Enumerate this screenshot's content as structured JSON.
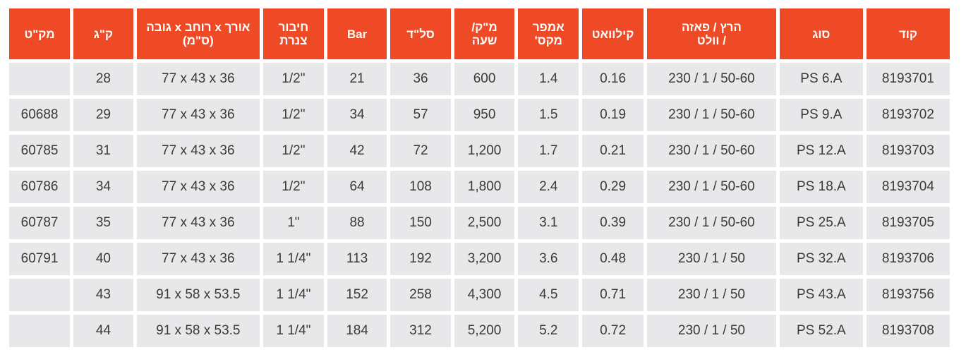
{
  "table": {
    "headers": [
      "קוד",
      "סוג",
      "הרץ / פאזה\n/ וולט",
      "קילוואט",
      "אמפר\nמקס'",
      "מ\"ק/\nשעה",
      "סל\"ד",
      "Bar",
      "חיבור\nצנרת",
      "אורך x רוחב x גובה\n(ס\"מ)",
      "ק\"ג",
      "מק\"ט"
    ],
    "rows": [
      [
        "8193701",
        "PS 6.A",
        "230 / 1 / 50-60",
        "0.16",
        "1.4",
        "600",
        "36",
        "21",
        "1/2\"",
        "77 x 43 x 36",
        "28",
        ""
      ],
      [
        "8193702",
        "PS 9.A",
        "230 / 1 / 50-60",
        "0.19",
        "1.5",
        "950",
        "57",
        "34",
        "1/2\"",
        "77 x 43 x 36",
        "29",
        "60688"
      ],
      [
        "8193703",
        "PS 12.A",
        "230 / 1 / 50-60",
        "0.21",
        "1.7",
        "1,200",
        "72",
        "42",
        "1/2\"",
        "77 x 43 x 36",
        "31",
        "60785"
      ],
      [
        "8193704",
        "PS 18.A",
        "230 / 1 / 50-60",
        "0.29",
        "2.4",
        "1,800",
        "108",
        "64",
        "1/2\"",
        "77 x 43 x 36",
        "34",
        "60786"
      ],
      [
        "8193705",
        "PS 25.A",
        "230 / 1 / 50-60",
        "0.39",
        "3.1",
        "2,500",
        "150",
        "88",
        "1\"",
        "77 x 43 x 36",
        "35",
        "60787"
      ],
      [
        "8193706",
        "PS 32.A",
        "230 / 1 / 50",
        "0.48",
        "3.6",
        "3,200",
        "192",
        "113",
        "1 1/4\"",
        "77 x 43 x 36",
        "40",
        "60791"
      ],
      [
        "8193756",
        "PS 43.A",
        "230 / 1 / 50",
        "0.71",
        "4.5",
        "4,300",
        "258",
        "152",
        "1 1/4\"",
        "91 x 58 x 53.5",
        "43",
        ""
      ],
      [
        "8193708",
        "PS 52.A",
        "230 / 1 / 50",
        "0.72",
        "5.2",
        "5,200",
        "312",
        "184",
        "1 1/4\"",
        "91 x 58 x 53.5",
        "44",
        ""
      ]
    ],
    "colors": {
      "header_bg": "#ee4a25",
      "header_text": "#ffffff",
      "cell_bg": "#e8e8ea",
      "cell_text": "#3a3a3a"
    }
  }
}
